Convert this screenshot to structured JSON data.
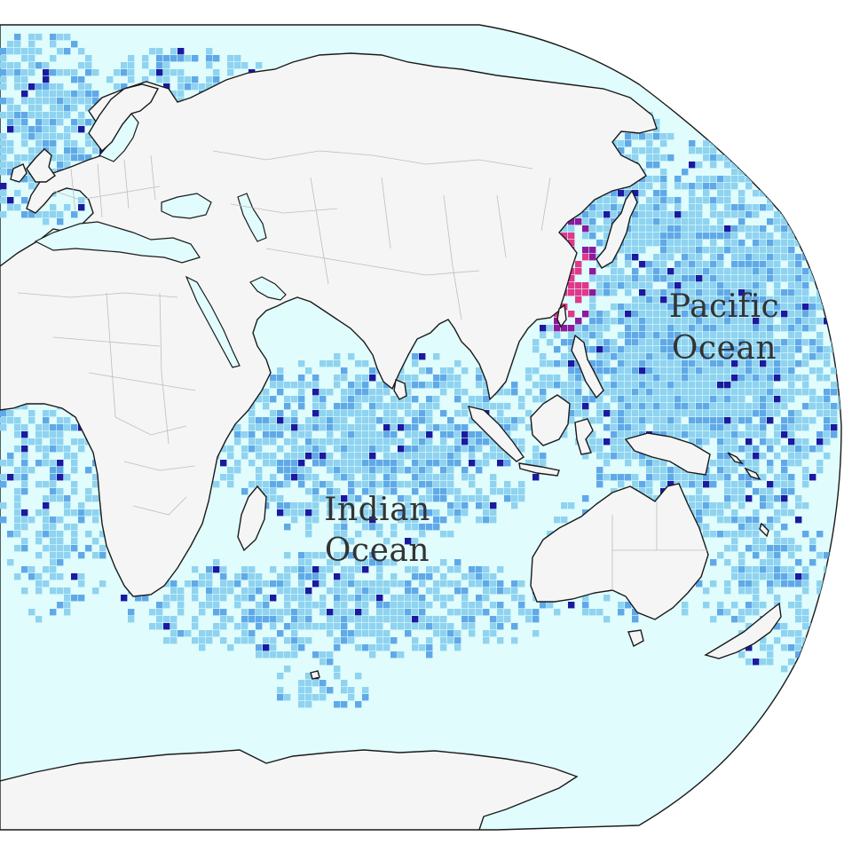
{
  "map": {
    "projection": "robinson",
    "colors": {
      "ocean_background": "#e0fcfc",
      "land": "#f5f5f5",
      "coastline": "#1a1a1a",
      "country_border": "#bdbdbd",
      "density_low": "#8fd3f0",
      "density_mid": "#60a9e8",
      "density_high": "#1a1aa0",
      "density_very_high": "#8b1a9e",
      "density_max": "#e0388a"
    },
    "labels": {
      "pacific_line1": "Pacific",
      "pacific_line2": "Ocean",
      "indian_line1": "Indian",
      "indian_line2": "Ocean"
    }
  }
}
